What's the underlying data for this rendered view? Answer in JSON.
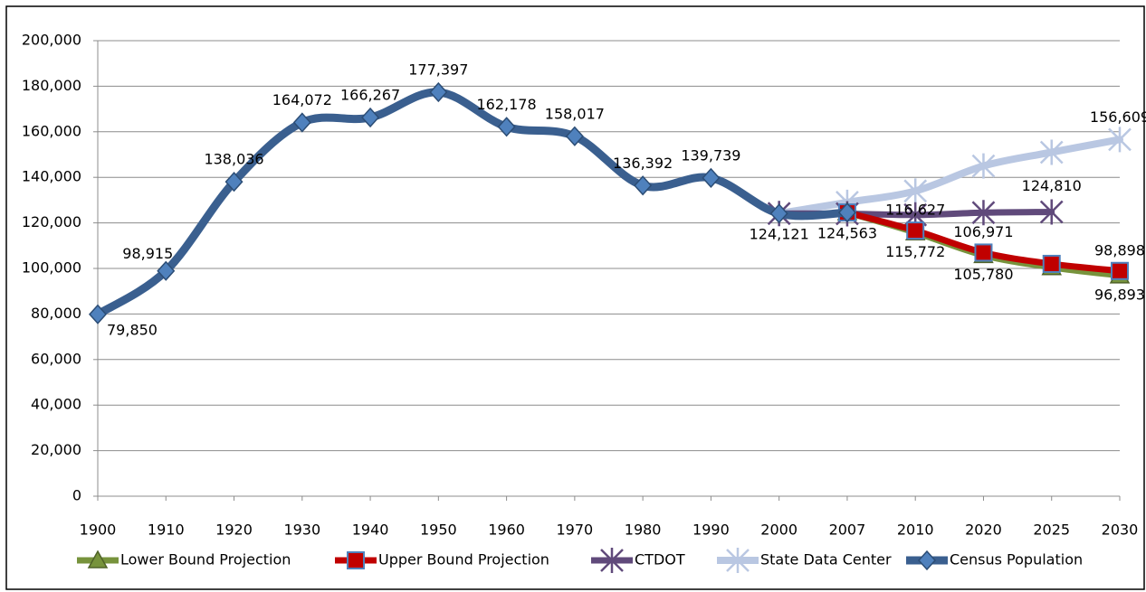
{
  "chart_data": {
    "type": "line",
    "categories": [
      "1900",
      "1910",
      "1920",
      "1930",
      "1940",
      "1950",
      "1960",
      "1970",
      "1980",
      "1990",
      "2000",
      "2007",
      "2010",
      "2020",
      "2025",
      "2030"
    ],
    "ylim": [
      0,
      200000
    ],
    "yticks": [
      0,
      {
        "value": 20000,
        "label": "20,000"
      },
      {
        "value": 40000,
        "label": "40,000"
      },
      {
        "value": 60000,
        "label": "60,000"
      },
      {
        "value": 80000,
        "label": "80,000"
      },
      {
        "value": 100000,
        "label": "100,000"
      },
      {
        "value": 120000,
        "label": "120,000"
      },
      {
        "value": 140000,
        "label": "140,000"
      },
      {
        "value": 160000,
        "label": "160,000"
      },
      {
        "value": 180000,
        "label": "180,000"
      },
      {
        "value": 200000,
        "label": "200,000"
      }
    ],
    "grid": true,
    "legend": "bottom",
    "series": [
      {
        "name": "Lower Bound Projection",
        "color": "#77933c",
        "marker": "triangle",
        "values": [
          null,
          null,
          null,
          null,
          null,
          null,
          null,
          null,
          null,
          null,
          null,
          124563,
          115772,
          105780,
          100500,
          96893
        ],
        "value_labels": [
          null,
          null,
          null,
          null,
          null,
          null,
          null,
          null,
          null,
          null,
          null,
          null,
          "115,772",
          "105,780",
          null,
          "96,893"
        ]
      },
      {
        "name": "Upper Bound Projection",
        "color": "#c00000",
        "marker": "square",
        "values": [
          null,
          null,
          null,
          null,
          null,
          null,
          null,
          null,
          null,
          null,
          null,
          124563,
          116627,
          106971,
          102000,
          98898
        ],
        "value_labels": [
          null,
          null,
          null,
          null,
          null,
          null,
          null,
          null,
          null,
          null,
          null,
          null,
          "116,627",
          "106,971",
          null,
          "98,898"
        ]
      },
      {
        "name": "CTDOT",
        "color": "#604a7b",
        "marker": "star",
        "values": [
          null,
          null,
          null,
          null,
          null,
          null,
          null,
          null,
          null,
          null,
          124121,
          124000,
          123500,
          124500,
          124810,
          null
        ],
        "value_labels": [
          null,
          null,
          null,
          null,
          null,
          null,
          null,
          null,
          null,
          null,
          null,
          null,
          null,
          null,
          "124,810",
          null
        ]
      },
      {
        "name": "State Data Center",
        "color": "#b9c7e2",
        "marker": "star",
        "values": [
          null,
          null,
          null,
          null,
          null,
          null,
          null,
          null,
          null,
          null,
          124121,
          129000,
          134000,
          145000,
          151000,
          156609
        ],
        "value_labels": [
          null,
          null,
          null,
          null,
          null,
          null,
          null,
          null,
          null,
          null,
          null,
          null,
          null,
          null,
          null,
          "156,609"
        ]
      },
      {
        "name": "Census Population",
        "color": "#3a5f8f",
        "marker": "diamond",
        "values": [
          79850,
          98915,
          138036,
          164072,
          166267,
          177397,
          162178,
          158017,
          136392,
          139739,
          124121,
          124563,
          null,
          null,
          null,
          null
        ],
        "value_labels": [
          "79,850",
          "98,915",
          "138,036",
          "164,072",
          "166,267",
          "177,397",
          "162,178",
          "158,017",
          "136,392",
          "139,739",
          "124,121",
          "124,563",
          null,
          null,
          null,
          null
        ]
      }
    ]
  }
}
